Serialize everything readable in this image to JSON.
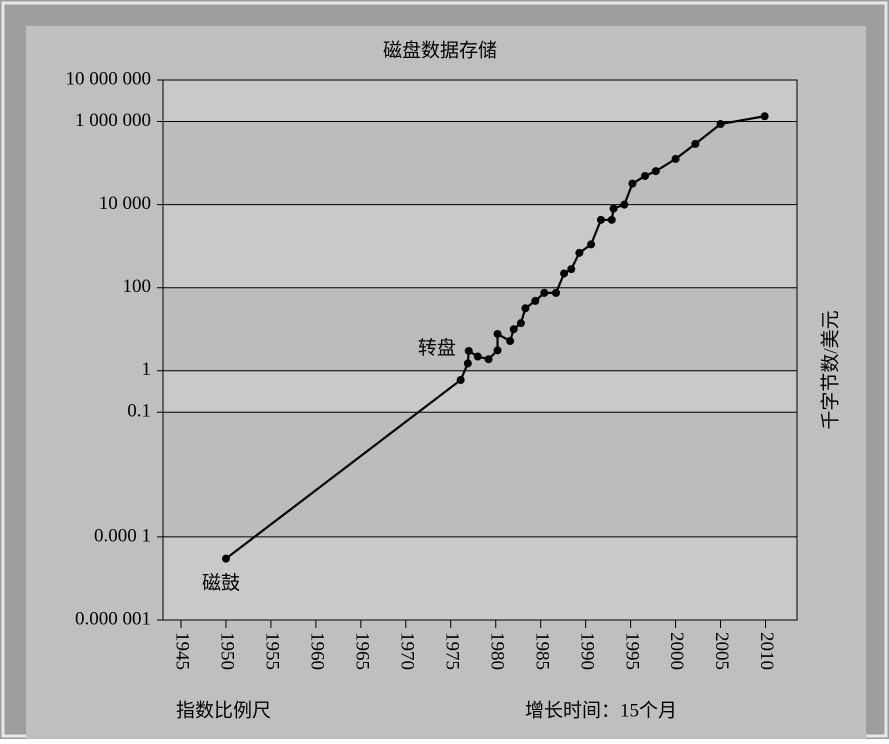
{
  "chart_data": {
    "type": "line",
    "title": "磁盘数据存储",
    "ylabel": "千字节数/美元",
    "scale_note": "指数比例尺",
    "growth_note": "增长时间：15个月",
    "annotations": [
      "转盘",
      "磁鼓"
    ],
    "x": [
      1950,
      1976.1,
      1976.9,
      1977,
      1978,
      1979.2,
      1980.2,
      1980.2,
      1981.6,
      1982,
      1982.8,
      1983.3,
      1984.4,
      1985.4,
      1986.7,
      1987.6,
      1988.4,
      1989.3,
      1990.6,
      1991.7,
      1992.9,
      1993.1,
      1994.3,
      1995.2,
      1996.6,
      1997.8,
      2000,
      2002.2,
      2005,
      2009.9
    ],
    "series": [
      {
        "name": "磁盘数据存储",
        "color": "#000000",
        "values": [
          3e-05,
          0.6,
          1.5,
          3,
          2.2,
          1.9,
          3.1,
          7.7,
          5.2,
          10,
          14,
          32,
          48,
          75,
          75,
          220,
          280,
          690,
          1100,
          4300,
          4300,
          8000,
          10000,
          32000,
          49000,
          64000,
          126000,
          290000,
          870000,
          1340000
        ]
      }
    ],
    "xlim": [
      1943,
      2013.5
    ],
    "xticks": [
      1945,
      1950,
      1955,
      1960,
      1965,
      1970,
      1975,
      1980,
      1985,
      1990,
      1995,
      2000,
      2005,
      2010
    ],
    "ylim": [
      1e-06,
      10000000
    ],
    "yticks": [
      {
        "value": 1e-06,
        "label": "0.000 001"
      },
      {
        "value": 0.0001,
        "label": "0.000 1"
      },
      0.1,
      1,
      100,
      {
        "value": 10000,
        "label": "10 000"
      },
      {
        "value": 1000000,
        "label": "1 000 000"
      },
      {
        "value": 10000000,
        "label": "10 000 000"
      }
    ],
    "ylog": true,
    "grid": true
  }
}
